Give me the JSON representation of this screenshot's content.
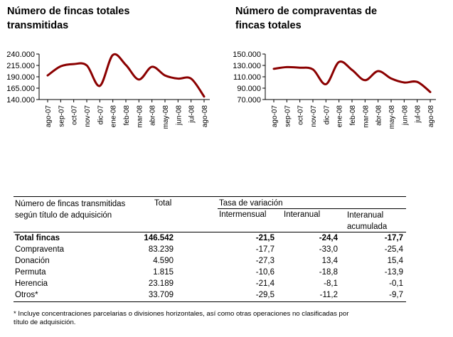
{
  "chart_data": [
    {
      "type": "line",
      "title_lines": [
        "Número de fincas totales",
        "transmitidas"
      ],
      "categories": [
        "ago-07",
        "sep-07",
        "oct-07",
        "nov-07",
        "dic-07",
        "ene-08",
        "feb-08",
        "mar-08",
        "abr-08",
        "may-08",
        "jun-08",
        "jul-08",
        "ago-08"
      ],
      "ytick_labels": [
        "240.000",
        "215.000",
        "190.000",
        "165.000",
        "140.000"
      ],
      "ylim": [
        140000,
        240000
      ],
      "yticks": [
        140000,
        165000,
        190000,
        215000,
        240000
      ],
      "values": [
        193000,
        213000,
        218000,
        215000,
        170000,
        238000,
        216000,
        184000,
        212000,
        193000,
        186000,
        186000,
        146542
      ],
      "line_color": "#8B0000",
      "grid": false
    },
    {
      "type": "line",
      "title_lines": [
        "Número de compraventas de",
        "fincas totales"
      ],
      "categories": [
        "ago-07",
        "sep-07",
        "oct-07",
        "nov-07",
        "dic-07",
        "ene-08",
        "feb-08",
        "mar-08",
        "abr-08",
        "may-08",
        "jun-08",
        "jul-08",
        "ago-08"
      ],
      "ytick_labels": [
        "150.000",
        "130.000",
        "110.000",
        "90.000",
        "70.000"
      ],
      "ylim": [
        70000,
        150000
      ],
      "yticks": [
        70000,
        90000,
        110000,
        130000,
        150000
      ],
      "values": [
        124000,
        127000,
        126000,
        123000,
        97000,
        136000,
        122000,
        104000,
        120000,
        107000,
        100000,
        101000,
        83239
      ],
      "line_color": "#8B0000",
      "grid": false
    }
  ],
  "table": {
    "header": {
      "row_label_lines": [
        "Número de fincas transmitidas",
        "según título de adquisición"
      ],
      "total": "Total",
      "tasa": "Tasa de variación",
      "inter": "Intermensual",
      "interanual": "Interanual",
      "acum_lines": [
        "Interanual",
        "acumulada"
      ]
    },
    "rows": [
      {
        "label": "Total fincas",
        "total": "146.542",
        "inter": "-21,5",
        "anual": "-24,4",
        "acum": "-17,7",
        "bold": true
      },
      {
        "label": "Compraventa",
        "total": "83.239",
        "inter": "-17,7",
        "anual": "-33,0",
        "acum": "-25,4",
        "bold": false
      },
      {
        "label": "Donación",
        "total": "4.590",
        "inter": "-27,3",
        "anual": "13,4",
        "acum": "15,4",
        "bold": false
      },
      {
        "label": "Permuta",
        "total": "1.815",
        "inter": "-10,6",
        "anual": "-18,8",
        "acum": "-13,9",
        "bold": false
      },
      {
        "label": "Herencia",
        "total": "23.189",
        "inter": "-21,4",
        "anual": "-8,1",
        "acum": "-0,1",
        "bold": false
      },
      {
        "label": "Otros*",
        "total": "33.709",
        "inter": "-29,5",
        "anual": "-11,2",
        "acum": "-9,7",
        "bold": false
      }
    ]
  },
  "footnote_lines": [
    "* Incluye concentraciones parcelarias o divisiones horizontales, así como otras operaciones no clasificadas por",
    "título de adquisición."
  ]
}
